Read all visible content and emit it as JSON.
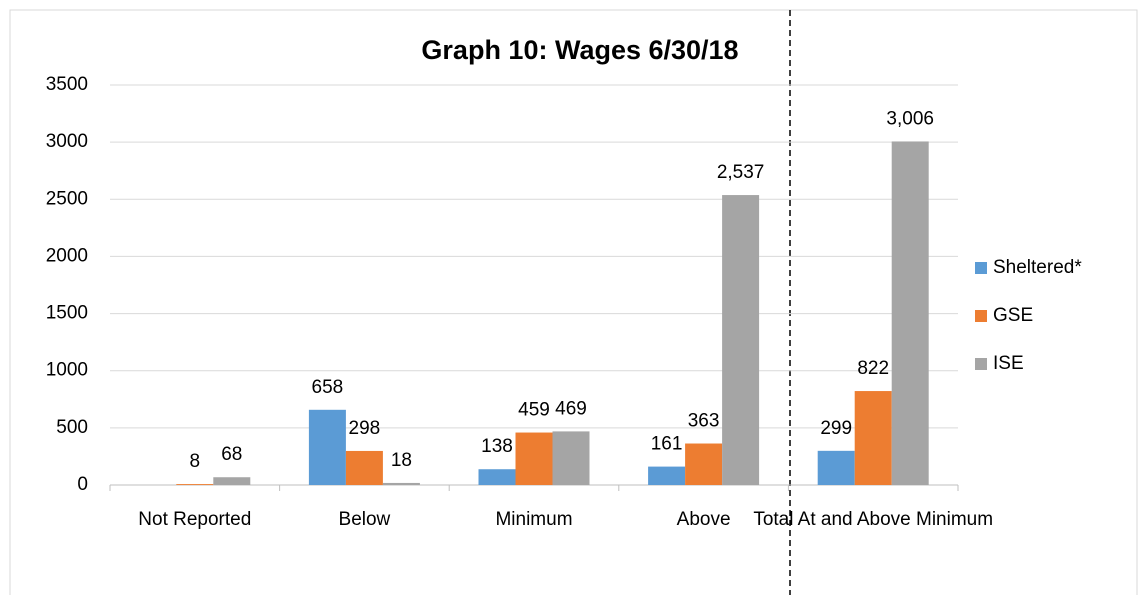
{
  "chart_data": {
    "type": "bar",
    "title": "Graph 10: Wages 6/30/18",
    "categories": [
      "Not Reported",
      "Below",
      "Minimum",
      "Above",
      "Total At and Above Minimum"
    ],
    "series": [
      {
        "name": "Sheltered*",
        "color": "#5b9bd5",
        "values": [
          null,
          658,
          138,
          161,
          299
        ]
      },
      {
        "name": "GSE",
        "color": "#ed7d31",
        "values": [
          8,
          298,
          459,
          363,
          822
        ]
      },
      {
        "name": "ISE",
        "color": "#a5a5a5",
        "values": [
          68,
          18,
          469,
          2537,
          3006
        ],
        "value_labels": [
          "68",
          "18",
          "469",
          "2,537",
          "3,006"
        ]
      }
    ],
    "ylim": [
      0,
      3500
    ],
    "yticks": [
      0,
      500,
      1000,
      1500,
      2000,
      2500,
      3000,
      3500
    ],
    "grid": true,
    "legend": "right"
  }
}
